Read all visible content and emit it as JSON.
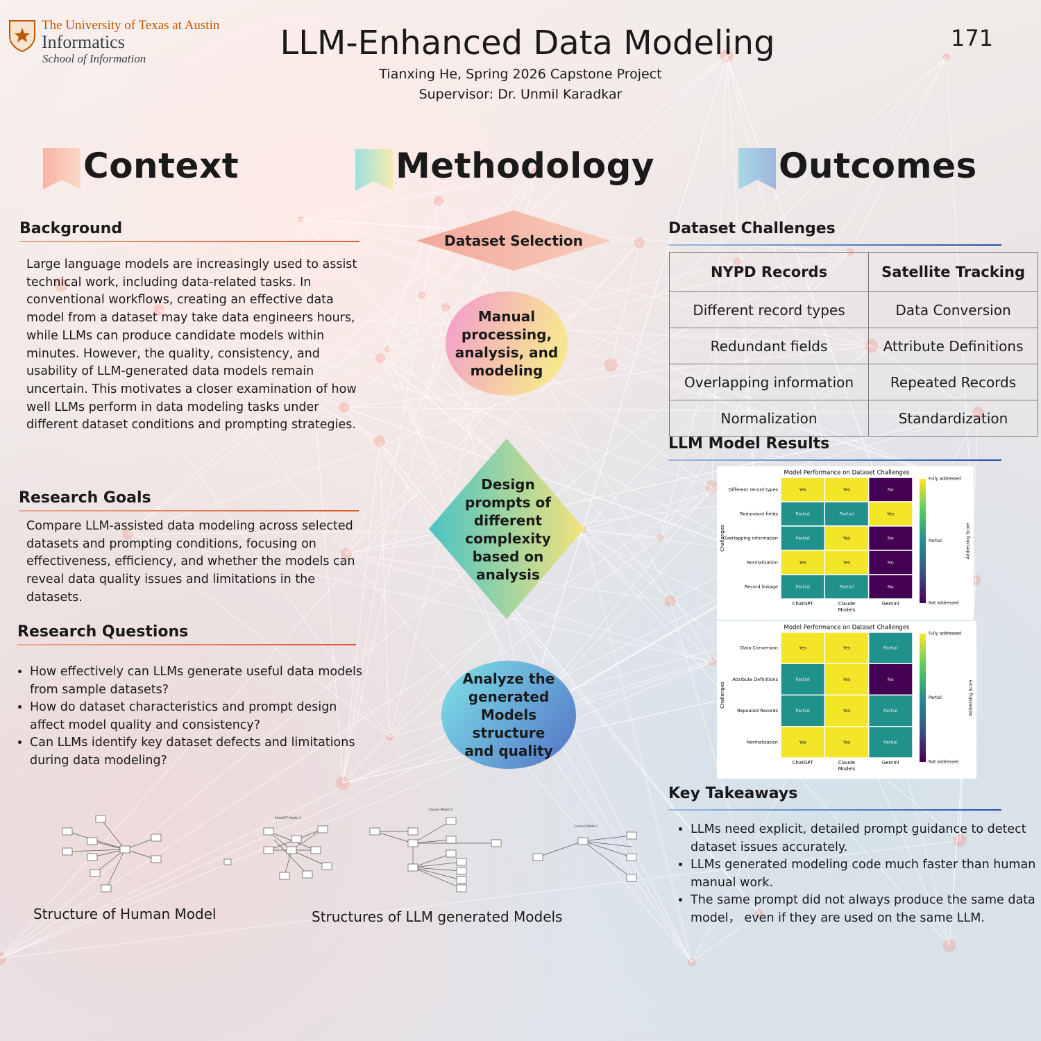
{
  "header": {
    "logo": {
      "university": "The University of Texas at Austin",
      "unit": "Informatics",
      "school": "School of Information"
    },
    "title": "LLM-Enhanced Data Modeling",
    "subtitle_lines": [
      "Tianxing He, Spring 2026 Capstone Project",
      "Supervisor: Dr. Unmil Karadkar"
    ],
    "poster_number": "171"
  },
  "columns": [
    "Context",
    "Methodology",
    "Outcomes"
  ],
  "context": {
    "background": {
      "heading": "Background",
      "text": "Large language models are increasingly used to assist technical work, including data-related tasks. In conventional workflows, creating an effective data model from a dataset may take data engineers hours, while LLMs can produce candidate models within minutes. However, the quality, consistency, and usability of LLM-generated data models remain uncertain. This motivates a closer examination of how well LLMs perform in data modeling tasks under different dataset conditions and prompting strategies."
    },
    "research_goals": {
      "heading": "Research Goals",
      "text": "Compare LLM-assisted data modeling across selected datasets and prompting conditions, focusing on effectiveness, efficiency, and whether the models can reveal data quality issues and limitations in the datasets."
    },
    "research_questions": {
      "heading": "Research Questions",
      "items": [
        "How effectively can LLMs generate useful data models from sample datasets?",
        "How do dataset characteristics and prompt design affect model quality and consistency?",
        "Can LLMs identify key dataset defects and limitations during data modeling?"
      ]
    },
    "figures": {
      "human_caption": "Structure of Human Model",
      "llm_caption": "Structures of LLM generated Models",
      "llm_model_titles": [
        "ChatGPT Model 1",
        "Claude Model 1",
        "Gemini Model 1"
      ]
    }
  },
  "methodology": {
    "steps": [
      "Dataset Selection",
      "Manual processing, analysis, and modeling",
      "Design prompts of different complexity based on analysis",
      "Analyze the generated Models structure and quality"
    ]
  },
  "outcomes": {
    "dataset_challenges": {
      "heading": "Dataset Challenges",
      "table": {
        "headers": [
          "NYPD Records",
          "Satellite Tracking"
        ],
        "rows": [
          [
            "Different record types",
            "Data Conversion"
          ],
          [
            "Redundant fields",
            "Attribute Definitions"
          ],
          [
            "Overlapping information",
            "Repeated Records"
          ],
          [
            "Normalization",
            "Standardization"
          ]
        ]
      }
    },
    "llm_model_results": {
      "heading": "LLM Model Results",
      "heatmaps": [
        {
          "title": "Model Performance on Dataset Challenges",
          "x_label": "Models",
          "y_label": "Challenges",
          "columns": [
            "ChatGPT",
            "Claude",
            "Gemini"
          ],
          "rows": [
            "Different record types",
            "Redundant fields",
            "Overlapping information",
            "Normalization",
            "Record linkage"
          ],
          "cells": [
            [
              "Yes",
              "Yes",
              "No"
            ],
            [
              "Partial",
              "Partial",
              "Yes"
            ],
            [
              "Partial",
              "Yes",
              "No"
            ],
            [
              "Yes",
              "Yes",
              "No"
            ],
            [
              "Partial",
              "Partial",
              "No"
            ]
          ],
          "cell_colors": {
            "Yes": "#f3e528",
            "Partial": "#21918c",
            "No": "#440154"
          },
          "colorbar_title": "Addressing Score",
          "colorbar_ticks": [
            "Fully addressed",
            "Partial",
            "Not addressed"
          ]
        },
        {
          "title": "Model Performance on Dataset Challenges",
          "x_label": "Models",
          "y_label": "Challenges",
          "columns": [
            "ChatGPT",
            "Claude",
            "Gemini"
          ],
          "rows": [
            "Data Conversion",
            "Attribute Definitions",
            "Repeated Records",
            "Normalization"
          ],
          "cells": [
            [
              "Yes",
              "Yes",
              "Partial"
            ],
            [
              "Partial",
              "Yes",
              "No"
            ],
            [
              "Partial",
              "Yes",
              "Partial"
            ],
            [
              "Yes",
              "Yes",
              "Partial"
            ]
          ],
          "cell_colors": {
            "Yes": "#f3e528",
            "Partial": "#21918c",
            "No": "#440154"
          },
          "colorbar_title": "Addressing Score",
          "colorbar_ticks": [
            "Fully addressed",
            "Partial",
            "Not addressed"
          ]
        }
      ]
    },
    "key_takeaways": {
      "heading": "Key Takeaways",
      "items": [
        "LLMs need explicit, detailed prompt guidance to detect dataset issues accurately.",
        "LLMs generated modeling code much faster than human manual work.",
        "The same prompt did not always produce the same data model， even if they are used on the same LLM."
      ]
    }
  }
}
